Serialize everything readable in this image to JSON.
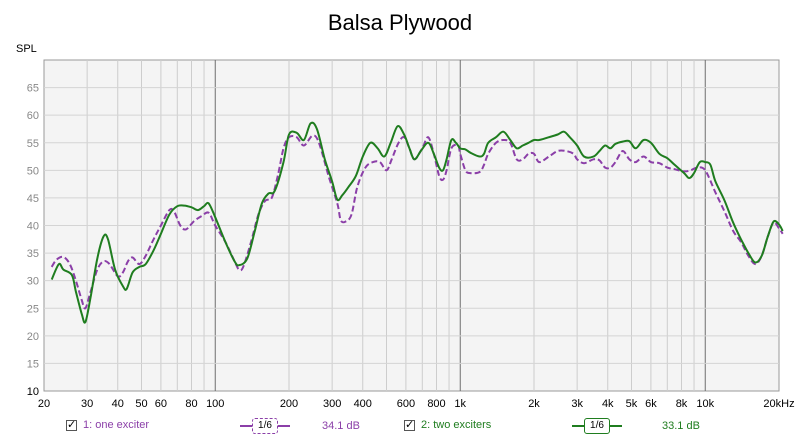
{
  "chart_data": {
    "type": "line",
    "title": "Balsa Plywood",
    "ylabel": "SPL",
    "xlabel": "",
    "xscale": "log",
    "xlim": [
      20,
      20000
    ],
    "ylim": [
      10,
      70
    ],
    "yticks": [
      10,
      15,
      20,
      25,
      30,
      35,
      40,
      45,
      50,
      55,
      60,
      65
    ],
    "xticks": [
      {
        "value": 20,
        "label": "20"
      },
      {
        "value": 30,
        "label": "30"
      },
      {
        "value": 40,
        "label": "40"
      },
      {
        "value": 50,
        "label": "50"
      },
      {
        "value": 60,
        "label": "60"
      },
      {
        "value": 80,
        "label": "80"
      },
      {
        "value": 100,
        "label": "100"
      },
      {
        "value": 200,
        "label": "200"
      },
      {
        "value": 300,
        "label": "300"
      },
      {
        "value": 400,
        "label": "400"
      },
      {
        "value": 600,
        "label": "600"
      },
      {
        "value": 800,
        "label": "800"
      },
      {
        "value": 1000,
        "label": "1k"
      },
      {
        "value": 2000,
        "label": "2k"
      },
      {
        "value": 3000,
        "label": "3k"
      },
      {
        "value": 4000,
        "label": "4k"
      },
      {
        "value": 5000,
        "label": "5k"
      },
      {
        "value": 6000,
        "label": "6k"
      },
      {
        "value": 8000,
        "label": "8k"
      },
      {
        "value": 10000,
        "label": "10k"
      },
      {
        "value": 20000,
        "label": "20kHz"
      }
    ],
    "grid": true,
    "legend_position": "bottom",
    "series": [
      {
        "name": "1: one exciter",
        "color": "#8b3fa8",
        "dash": true,
        "points": [
          [
            21.5,
            32.5
          ],
          [
            22.5,
            33.8
          ],
          [
            24,
            34.3
          ],
          [
            25.5,
            33
          ],
          [
            27,
            30
          ],
          [
            28.5,
            26.5
          ],
          [
            29.5,
            25
          ],
          [
            31,
            28
          ],
          [
            33,
            32
          ],
          [
            35,
            33.5
          ],
          [
            37,
            33
          ],
          [
            40,
            30.8
          ],
          [
            42,
            31.5
          ],
          [
            44,
            33.5
          ],
          [
            46,
            34.2
          ],
          [
            49,
            33
          ],
          [
            52,
            34.5
          ],
          [
            56,
            37.5
          ],
          [
            60,
            40
          ],
          [
            65,
            42.8
          ],
          [
            68,
            42.5
          ],
          [
            72,
            40
          ],
          [
            76,
            39.3
          ],
          [
            82,
            40.8
          ],
          [
            88,
            41.7
          ],
          [
            94,
            42.3
          ],
          [
            100,
            40
          ],
          [
            110,
            37
          ],
          [
            120,
            33.5
          ],
          [
            125,
            32
          ],
          [
            130,
            32.5
          ],
          [
            140,
            37
          ],
          [
            150,
            42
          ],
          [
            160,
            44.5
          ],
          [
            170,
            45
          ],
          [
            180,
            49
          ],
          [
            190,
            54
          ],
          [
            200,
            56
          ],
          [
            215,
            56
          ],
          [
            230,
            54.5
          ],
          [
            250,
            56.3
          ],
          [
            265,
            55
          ],
          [
            290,
            49
          ],
          [
            315,
            44
          ],
          [
            325,
            41
          ],
          [
            340,
            40.7
          ],
          [
            360,
            42
          ],
          [
            380,
            47
          ],
          [
            410,
            50.5
          ],
          [
            440,
            51.5
          ],
          [
            470,
            51.5
          ],
          [
            500,
            50
          ],
          [
            525,
            52
          ],
          [
            560,
            55
          ],
          [
            590,
            56
          ],
          [
            620,
            54
          ],
          [
            650,
            52
          ],
          [
            700,
            54
          ],
          [
            740,
            56
          ],
          [
            780,
            53
          ],
          [
            820,
            49
          ],
          [
            850,
            48.3
          ],
          [
            880,
            50
          ],
          [
            920,
            54
          ],
          [
            980,
            54.5
          ],
          [
            1000,
            53
          ],
          [
            1050,
            50
          ],
          [
            1100,
            49.5
          ],
          [
            1200,
            49.7
          ],
          [
            1250,
            51
          ],
          [
            1300,
            53
          ],
          [
            1400,
            55
          ],
          [
            1500,
            55.5
          ],
          [
            1600,
            55
          ],
          [
            1700,
            52
          ],
          [
            1800,
            52
          ],
          [
            1900,
            53
          ],
          [
            2000,
            53
          ],
          [
            2100,
            51.5
          ],
          [
            2300,
            52.5
          ],
          [
            2500,
            53.5
          ],
          [
            2700,
            53.5
          ],
          [
            2900,
            53
          ],
          [
            3000,
            52
          ],
          [
            3200,
            51.3
          ],
          [
            3500,
            52
          ],
          [
            3700,
            51.8
          ],
          [
            3900,
            50.5
          ],
          [
            4100,
            50.5
          ],
          [
            4300,
            51.5
          ],
          [
            4600,
            53.5
          ],
          [
            4900,
            52
          ],
          [
            5200,
            51.5
          ],
          [
            5600,
            52.5
          ],
          [
            6000,
            51.5
          ],
          [
            6500,
            51.3
          ],
          [
            7000,
            50.5
          ],
          [
            7500,
            50.2
          ],
          [
            8200,
            49.8
          ],
          [
            8700,
            50
          ],
          [
            9300,
            50.5
          ],
          [
            10000,
            50
          ],
          [
            11000,
            46
          ],
          [
            12000,
            42.5
          ],
          [
            13000,
            39
          ],
          [
            14000,
            37
          ],
          [
            15000,
            34.5
          ],
          [
            16000,
            33
          ],
          [
            17000,
            34.5
          ],
          [
            18000,
            38
          ],
          [
            19000,
            40.5
          ],
          [
            20000,
            39.5
          ],
          [
            20700,
            38.5
          ]
        ]
      },
      {
        "name": "2: two exciters",
        "color": "#1f7d1f",
        "dash": false,
        "points": [
          [
            21.5,
            30.2
          ],
          [
            23,
            33
          ],
          [
            24,
            32
          ],
          [
            26,
            31
          ],
          [
            27,
            28
          ],
          [
            28.5,
            24
          ],
          [
            29.5,
            22.5
          ],
          [
            31,
            27
          ],
          [
            33,
            34
          ],
          [
            35,
            38
          ],
          [
            36.5,
            37.5
          ],
          [
            39,
            32
          ],
          [
            42,
            29
          ],
          [
            43.5,
            28.5
          ],
          [
            46,
            31.5
          ],
          [
            49,
            32.5
          ],
          [
            52,
            33
          ],
          [
            56,
            35.5
          ],
          [
            60,
            38.5
          ],
          [
            65,
            42
          ],
          [
            70,
            43.5
          ],
          [
            75,
            43.6
          ],
          [
            80,
            43.3
          ],
          [
            85,
            42.8
          ],
          [
            90,
            43.5
          ],
          [
            94,
            44
          ],
          [
            100,
            41.5
          ],
          [
            110,
            37
          ],
          [
            120,
            33.5
          ],
          [
            125,
            32.8
          ],
          [
            135,
            34
          ],
          [
            145,
            39
          ],
          [
            155,
            44
          ],
          [
            165,
            45.8
          ],
          [
            175,
            46.3
          ],
          [
            190,
            51.5
          ],
          [
            200,
            56.5
          ],
          [
            215,
            56.8
          ],
          [
            230,
            55.5
          ],
          [
            245,
            58.5
          ],
          [
            260,
            57.5
          ],
          [
            280,
            52
          ],
          [
            300,
            48
          ],
          [
            315,
            44.7
          ],
          [
            330,
            45.5
          ],
          [
            350,
            47
          ],
          [
            375,
            49
          ],
          [
            400,
            52.5
          ],
          [
            430,
            55
          ],
          [
            460,
            54
          ],
          [
            490,
            52.5
          ],
          [
            520,
            55
          ],
          [
            555,
            58
          ],
          [
            590,
            56.5
          ],
          [
            620,
            54
          ],
          [
            650,
            52
          ],
          [
            690,
            53.5
          ],
          [
            740,
            55
          ],
          [
            780,
            53
          ],
          [
            820,
            50.5
          ],
          [
            850,
            50
          ],
          [
            880,
            52
          ],
          [
            920,
            55.5
          ],
          [
            960,
            55
          ],
          [
            1000,
            54
          ],
          [
            1050,
            53.8
          ],
          [
            1100,
            53.2
          ],
          [
            1200,
            52.5
          ],
          [
            1250,
            53
          ],
          [
            1300,
            55
          ],
          [
            1400,
            56
          ],
          [
            1500,
            57
          ],
          [
            1600,
            55.5
          ],
          [
            1700,
            54
          ],
          [
            1800,
            54.5
          ],
          [
            1900,
            55
          ],
          [
            2000,
            55.5
          ],
          [
            2100,
            55.5
          ],
          [
            2300,
            56
          ],
          [
            2500,
            56.5
          ],
          [
            2650,
            57
          ],
          [
            2800,
            56
          ],
          [
            3000,
            54.5
          ],
          [
            3200,
            52.5
          ],
          [
            3500,
            52.5
          ],
          [
            3700,
            53.5
          ],
          [
            3900,
            54.5
          ],
          [
            4100,
            54
          ],
          [
            4300,
            54.8
          ],
          [
            4600,
            55.2
          ],
          [
            4900,
            55.3
          ],
          [
            5200,
            54
          ],
          [
            5600,
            55.5
          ],
          [
            6000,
            55
          ],
          [
            6500,
            53
          ],
          [
            7000,
            52.2
          ],
          [
            7500,
            51
          ],
          [
            8200,
            49.5
          ],
          [
            8600,
            48.6
          ],
          [
            9000,
            49.5
          ],
          [
            9500,
            51.5
          ],
          [
            10000,
            51.5
          ],
          [
            10500,
            51
          ],
          [
            11000,
            48
          ],
          [
            12000,
            44.5
          ],
          [
            13000,
            40.5
          ],
          [
            14000,
            37.5
          ],
          [
            15000,
            35
          ],
          [
            16000,
            33.3
          ],
          [
            17000,
            34.5
          ],
          [
            18000,
            38
          ],
          [
            19000,
            40.7
          ],
          [
            20000,
            40.2
          ],
          [
            20700,
            39
          ]
        ]
      }
    ]
  },
  "legend": {
    "items": [
      {
        "label": "1: one exciter",
        "smoothing": "1/6",
        "level": "34.1 dB",
        "color": "#8b3fa8"
      },
      {
        "label": "2: two exciters",
        "smoothing": "1/6",
        "level": "33.1 dB",
        "color": "#1f7d1f"
      }
    ]
  }
}
